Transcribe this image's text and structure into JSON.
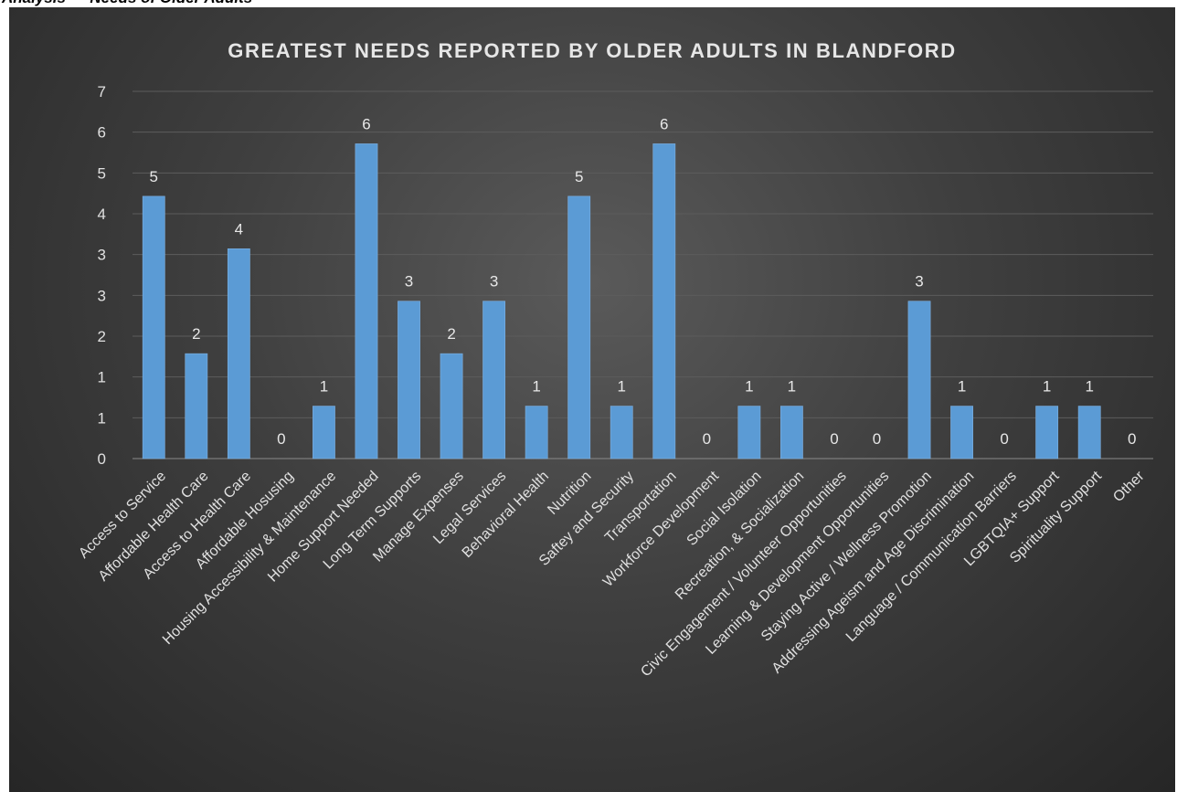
{
  "page": {
    "heading": "Analysis — Needs of Older Adults"
  },
  "colors": {
    "bar": "#5b9bd5",
    "bar_edge": "#7fb2e3",
    "gridline": "#5c5c5c",
    "text": "#e0e0e0"
  },
  "chart_data": {
    "type": "bar",
    "title": "GREATEST NEEDS REPORTED BY OLDER ADULTS IN BLANDFORD",
    "xlabel": "",
    "ylabel": "",
    "ylim": [
      0,
      7
    ],
    "y_ticks": [
      "0",
      "1",
      "1",
      "2",
      "3",
      "3",
      "4",
      "5",
      "6",
      "7"
    ],
    "gridlines": true,
    "legend": "none",
    "categories": [
      "Access to Service",
      "Affordable Health Care",
      "Access to Health Care",
      "Affordable Hosusing",
      "Housing Accessibility & Maintenance",
      "Home Support Needed",
      "Long Term Supports",
      "Manage Expenses",
      "Legal Services",
      "Behavioral Health",
      "Nutrition",
      "Saftey and Security",
      "Transportation",
      "Workforce Development",
      "Social Isolation",
      "Recreation, & Socialization",
      "Civic Engagement / Volunteer Opportunities",
      "Learning & Development Opportunities",
      "Staying Active / Wellness Promotion",
      "Addressing Ageism and Age Discrimination",
      "Language / Communication Barriers",
      "LGBTQIA+ Support",
      "Spirituality Support",
      "Other"
    ],
    "values": [
      5,
      2,
      4,
      0,
      1,
      6,
      3,
      2,
      3,
      1,
      5,
      1,
      6,
      0,
      1,
      1,
      0,
      0,
      3,
      1,
      0,
      1,
      1,
      0
    ],
    "data_labels": [
      "5",
      "2",
      "4",
      "0",
      "1",
      "6",
      "3",
      "2",
      "3",
      "1",
      "5",
      "1",
      "6",
      "0",
      "1",
      "1",
      "0",
      "0",
      "3",
      "1",
      "0",
      "1",
      "1",
      "0"
    ]
  }
}
